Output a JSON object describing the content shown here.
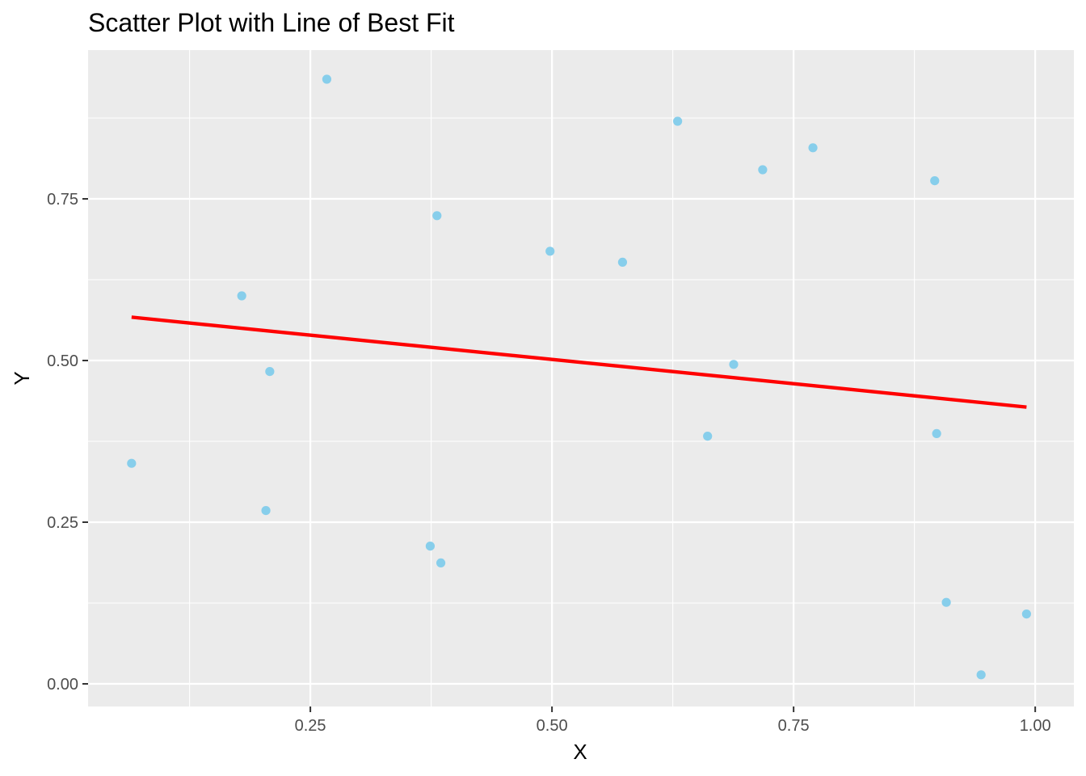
{
  "chart_data": {
    "type": "scatter",
    "title": "Scatter Plot with Line of Best Fit",
    "xlabel": "X",
    "ylabel": "Y",
    "xlim": [
      0.02,
      1.04
    ],
    "ylim": [
      -0.035,
      0.98
    ],
    "x_ticks": [
      {
        "value": 0.25,
        "label": "0.25"
      },
      {
        "value": 0.5,
        "label": "0.50"
      },
      {
        "value": 0.75,
        "label": "0.75"
      },
      {
        "value": 1.0,
        "label": "1.00"
      }
    ],
    "y_ticks": [
      {
        "value": 0.0,
        "label": "0.00"
      },
      {
        "value": 0.25,
        "label": "0.25"
      },
      {
        "value": 0.5,
        "label": "0.50"
      },
      {
        "value": 0.75,
        "label": "0.75"
      }
    ],
    "x_minor_breaks": [
      0.125,
      0.375,
      0.625,
      0.875
    ],
    "y_minor_breaks": [
      0.125,
      0.375,
      0.625,
      0.875
    ],
    "grid": true,
    "points": [
      {
        "x": 0.065,
        "y": 0.341
      },
      {
        "x": 0.179,
        "y": 0.6
      },
      {
        "x": 0.204,
        "y": 0.268
      },
      {
        "x": 0.208,
        "y": 0.483
      },
      {
        "x": 0.267,
        "y": 0.935
      },
      {
        "x": 0.374,
        "y": 0.213
      },
      {
        "x": 0.381,
        "y": 0.724
      },
      {
        "x": 0.385,
        "y": 0.187
      },
      {
        "x": 0.498,
        "y": 0.669
      },
      {
        "x": 0.573,
        "y": 0.652
      },
      {
        "x": 0.63,
        "y": 0.87
      },
      {
        "x": 0.661,
        "y": 0.383
      },
      {
        "x": 0.688,
        "y": 0.494
      },
      {
        "x": 0.718,
        "y": 0.795
      },
      {
        "x": 0.77,
        "y": 0.829
      },
      {
        "x": 0.896,
        "y": 0.778
      },
      {
        "x": 0.898,
        "y": 0.387
      },
      {
        "x": 0.908,
        "y": 0.126
      },
      {
        "x": 0.944,
        "y": 0.014
      },
      {
        "x": 0.991,
        "y": 0.108
      }
    ],
    "fit_line": {
      "x": [
        0.065,
        0.991
      ],
      "y": [
        0.567,
        0.428
      ]
    },
    "colors": {
      "panel": "#ebebeb",
      "grid": "#ffffff",
      "point": "#87ceeb",
      "fit_line": "#ff0000",
      "tick": "#333333"
    }
  }
}
